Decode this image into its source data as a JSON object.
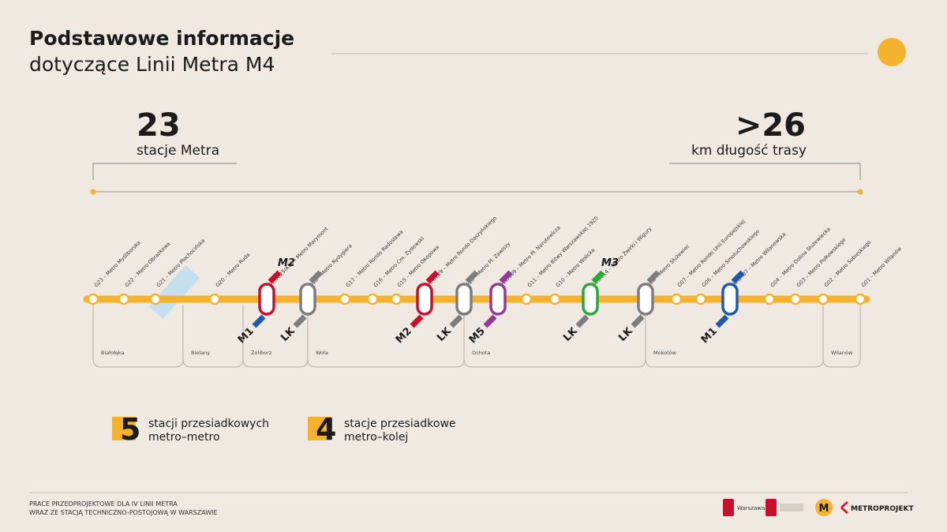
{
  "header": {
    "title": "Podstawowe informacje",
    "subtitle": "dotyczące Linii Metra M4"
  },
  "stats": [
    {
      "value": "23",
      "label": "stacje Metra"
    },
    {
      "value": ">26",
      "label": "km długość trasy"
    }
  ],
  "stations": [
    {
      "label": "G23 – Metro Myśliborska"
    },
    {
      "label": "G22 – Metro Obrazkowa"
    },
    {
      "label": "G21 – Metro Płochocińska"
    },
    {
      "label": "G20 – Metro Ruda"
    },
    {
      "label": "G19/C25/A10 – Metro Marymont",
      "top": {
        "text": "M2",
        "color": "#c8102e"
      },
      "bottom": {
        "text": "M1",
        "color": "#1e5aa8"
      }
    },
    {
      "label": "G18 – Metro Rydygiera",
      "top": {
        "text": "",
        "color": "#7d7d7d"
      },
      "bottom": {
        "text": "LK",
        "color": "#7d7d7d"
      }
    },
    {
      "label": "G17 – Metro Rondo Radosława"
    },
    {
      "label": "G16 – Metro Cm. Żydowski"
    },
    {
      "label": "G15 – Metro Okopowa"
    },
    {
      "label": "G14/C29 – Metro Rondo Daszyńskiego",
      "top": {
        "text": "",
        "color": "#c8102e"
      },
      "bottom": {
        "text": "M2",
        "color": "#c8102e"
      }
    },
    {
      "label": "G13 – Metro Pl. Zawiszy",
      "top": {
        "text": "",
        "color": "#7d7d7d"
      },
      "bottom": {
        "text": "LK",
        "color": "#7d7d7d"
      }
    },
    {
      "label": "G12/B09 – Metro Pl. Narutowicza",
      "top": {
        "text": "",
        "color": "#8e3c97"
      },
      "bottom": {
        "text": "M5",
        "color": "#8e3c97"
      }
    },
    {
      "label": "G11 – Metro Bitwy Warszawskiej 1920"
    },
    {
      "label": "G10 – Metro Wolicka"
    },
    {
      "label": "G09/E14 – Metro Żwirki i Wigury",
      "top": {
        "text": "M3",
        "color": "#2aa839"
      },
      "bottom": {
        "text": "LK",
        "color": "#7d7d7d"
      }
    },
    {
      "label": "G08 – Metro Służewiec",
      "top": {
        "text": "",
        "color": "#7d7d7d"
      },
      "bottom": {
        "text": "LK",
        "color": "#7d7d7d"
      }
    },
    {
      "label": "G07 – Metro Rondo Unii Europejskiej"
    },
    {
      "label": "G06 – Metro Smoluchowskiego"
    },
    {
      "label": "G05/A07 – Metro Wilanowska",
      "top": {
        "text": "",
        "color": "#1e5aa8"
      },
      "bottom": {
        "text": "M1",
        "color": "#1e5aa8"
      }
    },
    {
      "label": "G04 – Metro Dolina Służewiecka"
    },
    {
      "label": "G03 – Metro Polkowskiego"
    },
    {
      "label": "G02 – Metro Sobieskiego"
    },
    {
      "label": "G01 – Metro Wilanów"
    }
  ],
  "districts": [
    "Białołęka",
    "Bielany",
    "Żoliborz",
    "Wola",
    "Ochota",
    "Mokotów",
    "Wilanów"
  ],
  "legend": [
    {
      "value": "5",
      "line1": "stacji przesiadkowych",
      "line2": "metro–metro"
    },
    {
      "value": "4",
      "line1": "stacje przesiadkowe",
      "line2": "metro–kolej"
    }
  ],
  "footer": {
    "line1": "PRACE PRZEDPROJEKTOWE DLA IV LINII METRA",
    "line2": "WRAZ ZE STACJĄ TECHNICZNO-POSTOJOWĄ W WARSZAWIE"
  },
  "logos": {
    "warsaw": "Warszawa",
    "metro": "M",
    "metroprojekt": "METROPROJEKT"
  }
}
